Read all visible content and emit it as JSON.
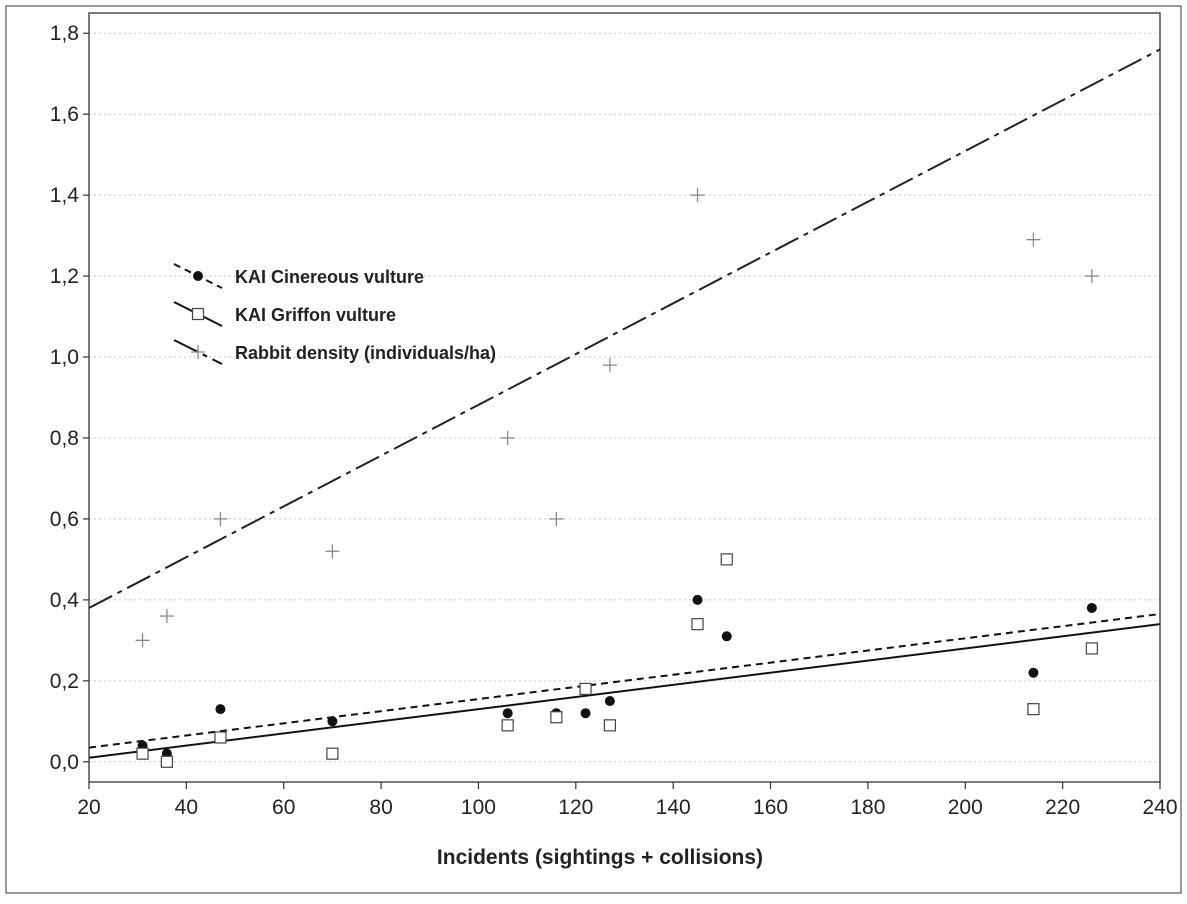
{
  "chart_data": {
    "type": "scatter",
    "xlabel": "Incidents (sightings + collisions)",
    "ylabel": "",
    "xlim": [
      20,
      240
    ],
    "ylim": [
      -0.05,
      1.85
    ],
    "x_ticks": [
      20,
      40,
      60,
      80,
      100,
      120,
      140,
      160,
      180,
      200,
      220,
      240
    ],
    "x_tick_labels": [
      "20",
      "40",
      "60",
      "80",
      "100",
      "120",
      "140",
      "160",
      "180",
      "200",
      "220",
      "240"
    ],
    "y_ticks": [
      0.0,
      0.2,
      0.4,
      0.6,
      0.8,
      1.0,
      1.2,
      1.4,
      1.6,
      1.8
    ],
    "y_tick_labels": [
      "0,0",
      "0,2",
      "0,4",
      "0,6",
      "0,8",
      "1,0",
      "1,2",
      "1,4",
      "1,6",
      "1,8"
    ],
    "grid": "horizontal dotted",
    "legend_position": "upper-left",
    "series": [
      {
        "name": "KAI Cinereous vulture",
        "marker": "filled-circle",
        "color": "#111111",
        "line_style": "short-dash",
        "x": [
          31,
          36,
          47,
          70,
          106,
          116,
          122,
          127,
          145,
          151,
          214,
          226
        ],
        "y": [
          0.04,
          0.02,
          0.13,
          0.1,
          0.12,
          0.12,
          0.12,
          0.15,
          0.4,
          0.31,
          0.22,
          0.38
        ],
        "trend": [
          [
            20,
            0.035
          ],
          [
            240,
            0.365
          ]
        ]
      },
      {
        "name": "KAI Griffon vulture",
        "marker": "open-square",
        "color": "#444444",
        "line_style": "solid",
        "x": [
          31,
          36,
          47,
          70,
          106,
          116,
          122,
          127,
          145,
          151,
          214,
          226
        ],
        "y": [
          0.02,
          0.0,
          0.06,
          0.02,
          0.09,
          0.11,
          0.18,
          0.09,
          0.34,
          0.5,
          0.13,
          0.28
        ],
        "trend": [
          [
            20,
            0.01
          ],
          [
            240,
            0.34
          ]
        ]
      },
      {
        "name": "Rabbit density (individuals/ha)",
        "marker": "plus",
        "color": "#888888",
        "line_style": "long-dash",
        "x": [
          31,
          36,
          47,
          70,
          106,
          116,
          127,
          145,
          214,
          226
        ],
        "y": [
          0.3,
          0.36,
          0.6,
          0.52,
          0.8,
          0.6,
          0.98,
          1.4,
          1.29,
          1.2
        ],
        "trend": [
          [
            20,
            0.38
          ],
          [
            240,
            1.76
          ]
        ]
      }
    ]
  }
}
